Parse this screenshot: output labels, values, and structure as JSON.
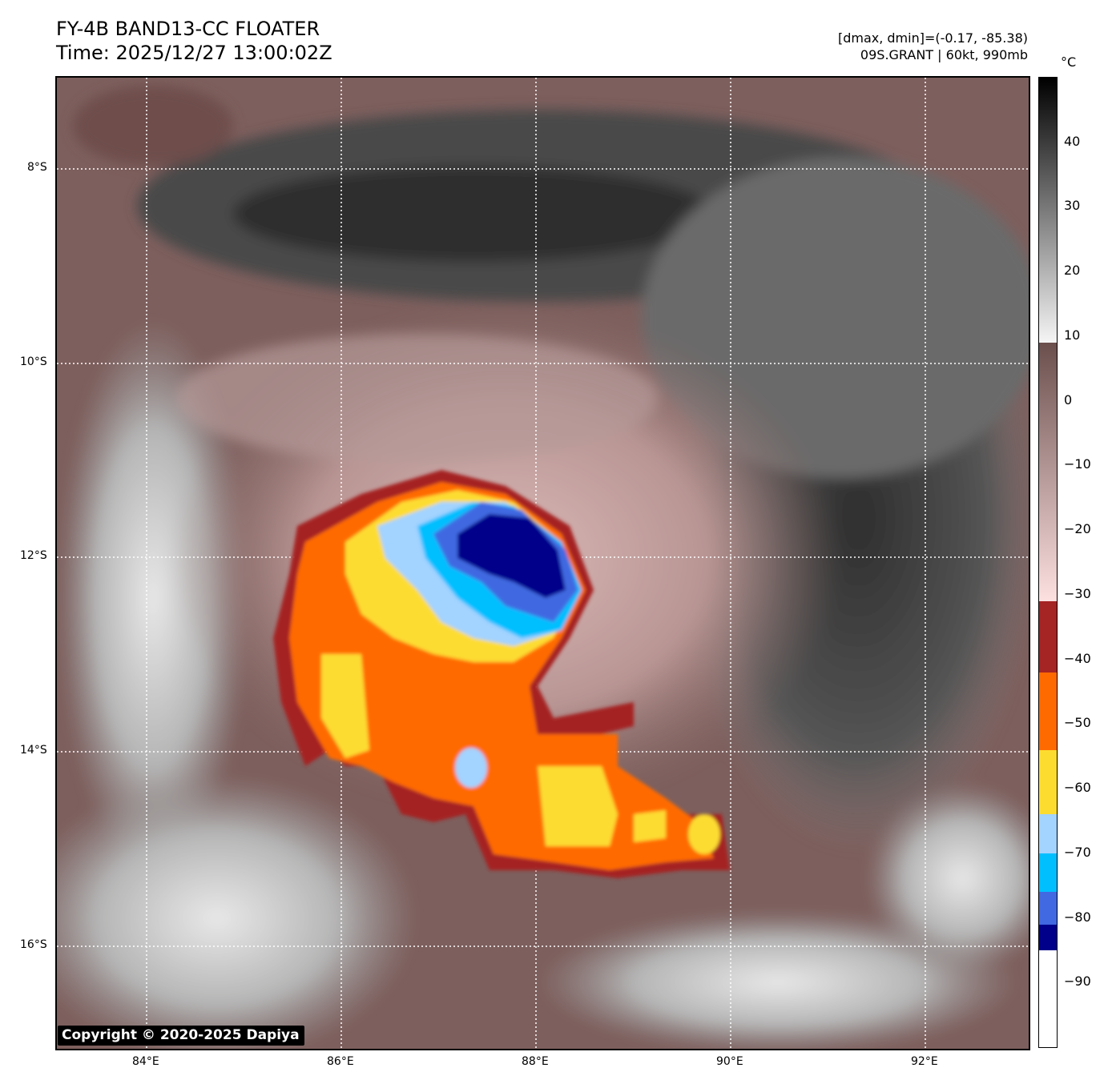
{
  "header": {
    "title": "FY-4B BAND13-CC FLOATER",
    "time": "Time: 2025/12/27 13:00:02Z",
    "range_info": "[dmax, dmin]=(-0.17, -85.38)",
    "storm_info": "09S.GRANT | 60kt, 990mb"
  },
  "map": {
    "lon_ticks": [
      "84°E",
      "86°E",
      "88°E",
      "90°E",
      "92°E"
    ],
    "lat_ticks": [
      "8°S",
      "10°S",
      "12°S",
      "14°S",
      "16°S"
    ],
    "lon_values": [
      84,
      86,
      88,
      90,
      92
    ],
    "lat_values": [
      -8,
      -10,
      -12,
      -14,
      -16
    ],
    "lon_range": [
      83.08,
      93.06
    ],
    "lat_range": [
      -7.06,
      -17.04
    ],
    "copyright": "Copyright © 2020-2025 Dapiya"
  },
  "colorbar": {
    "unit": "°C",
    "range": [
      -100,
      50
    ],
    "ticks": [
      "40",
      "30",
      "20",
      "10",
      "0",
      "−10",
      "−20",
      "−30",
      "−40",
      "−50",
      "−60",
      "−70",
      "−80",
      "−90"
    ],
    "tick_values": [
      40,
      30,
      20,
      10,
      0,
      -10,
      -20,
      -30,
      -40,
      -50,
      -60,
      -70,
      -80,
      -90
    ],
    "segments": [
      {
        "from": -100,
        "to": -85,
        "color_top": "#ffffff",
        "color_bottom": "#ffffff"
      },
      {
        "from": -85,
        "to": -81,
        "color_top": "#00008b",
        "color_bottom": "#00008b"
      },
      {
        "from": -81,
        "to": -76,
        "color_top": "#4169e1",
        "color_bottom": "#4169e1"
      },
      {
        "from": -76,
        "to": -70,
        "color_top": "#00bfff",
        "color_bottom": "#00bfff"
      },
      {
        "from": -70,
        "to": -64,
        "color_top": "#a3d3ff",
        "color_bottom": "#a3d3ff"
      },
      {
        "from": -64,
        "to": -54,
        "color_top": "#fddc30",
        "color_bottom": "#fddc30"
      },
      {
        "from": -54,
        "to": -42,
        "color_top": "#ff6a00",
        "color_bottom": "#ff6a00"
      },
      {
        "from": -42,
        "to": -31,
        "color_top": "#a52424",
        "color_bottom": "#a52424"
      },
      {
        "from": -31,
        "to": 9,
        "color_top": "#6a4f4d",
        "color_bottom": "#fde0e0"
      },
      {
        "from": 9,
        "to": 50,
        "color_top": "#000000",
        "color_bottom": "#f5f5f5"
      }
    ]
  }
}
